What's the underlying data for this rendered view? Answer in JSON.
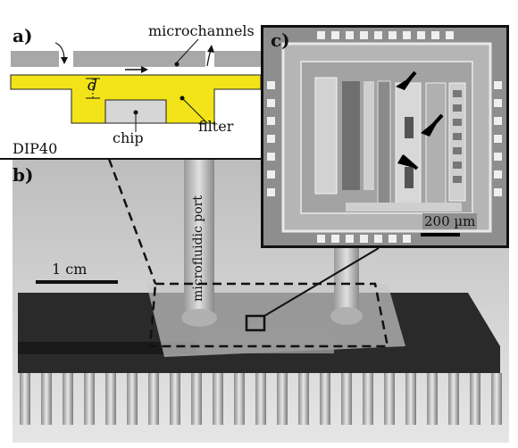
{
  "panel_a": {
    "label": "a)",
    "microchannels": "microchannels",
    "d": "d",
    "chip": "chip",
    "filter": "filter",
    "package": "DIP40"
  },
  "panel_b": {
    "label": "b)",
    "scale": "1 cm",
    "port": "microfluidic port"
  },
  "panel_c": {
    "label": "c)",
    "scale": "200 µm"
  },
  "colors": {
    "epoxy_yellow": "#f2e418",
    "cover_gray": "#a8a8a8",
    "chip_gray": "#d6d6d6",
    "ic_body": "#2a2a2a",
    "pins": "#c8c8c8"
  }
}
